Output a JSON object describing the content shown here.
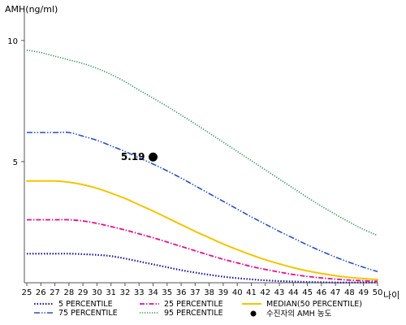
{
  "chart_data": {
    "type": "line",
    "ylabel": "AMH(ng/ml)",
    "xlabel": "나이",
    "xlim": [
      25,
      50
    ],
    "ylim": [
      0,
      11
    ],
    "yticks": [
      5,
      10
    ],
    "x": [
      25,
      26,
      27,
      28,
      29,
      30,
      31,
      32,
      33,
      34,
      35,
      36,
      37,
      38,
      39,
      40,
      41,
      42,
      43,
      44,
      45,
      46,
      47,
      48,
      49,
      50
    ],
    "series": [
      {
        "name": "5 PERCENTILE",
        "color": "#1a1a99",
        "dash": "dotted",
        "values": [
          1.2,
          1.2,
          1.2,
          1.2,
          1.18,
          1.15,
          1.1,
          1.0,
          0.88,
          0.76,
          0.64,
          0.52,
          0.42,
          0.33,
          0.25,
          0.19,
          0.14,
          0.1,
          0.07,
          0.05,
          0.03,
          0.02,
          0.01,
          0.01,
          0.01,
          0.01
        ]
      },
      {
        "name": "25 PERCENTILE",
        "color": "#e0108f",
        "dash": "dashdot",
        "values": [
          2.6,
          2.6,
          2.6,
          2.6,
          2.55,
          2.45,
          2.32,
          2.18,
          2.02,
          1.86,
          1.68,
          1.5,
          1.32,
          1.14,
          0.97,
          0.82,
          0.67,
          0.55,
          0.44,
          0.34,
          0.26,
          0.2,
          0.15,
          0.11,
          0.08,
          0.06
        ]
      },
      {
        "name": "MEDIAN(50 PERCENTILE)",
        "color": "#f2c500",
        "dash": "solid",
        "values": [
          4.2,
          4.2,
          4.2,
          4.15,
          4.05,
          3.9,
          3.7,
          3.48,
          3.22,
          2.96,
          2.68,
          2.4,
          2.12,
          1.86,
          1.6,
          1.37,
          1.15,
          0.95,
          0.78,
          0.62,
          0.49,
          0.38,
          0.29,
          0.22,
          0.17,
          0.13
        ]
      },
      {
        "name": "75 PERCENTILE",
        "color": "#2b4fbf",
        "dash": "dashdotdot",
        "values": [
          6.2,
          6.2,
          6.2,
          6.2,
          6.05,
          5.88,
          5.65,
          5.42,
          5.16,
          4.9,
          4.62,
          4.32,
          4.0,
          3.68,
          3.36,
          3.04,
          2.72,
          2.42,
          2.12,
          1.84,
          1.56,
          1.3,
          1.06,
          0.84,
          0.64,
          0.46
        ]
      },
      {
        "name": "95 PERCENTILE",
        "color": "#2e8b57",
        "dash": "densedot",
        "values": [
          9.6,
          9.5,
          9.35,
          9.2,
          9.05,
          8.85,
          8.6,
          8.3,
          7.95,
          7.62,
          7.28,
          6.92,
          6.56,
          6.18,
          5.8,
          5.42,
          5.04,
          4.66,
          4.28,
          3.9,
          3.52,
          3.16,
          2.82,
          2.5,
          2.2,
          1.95
        ]
      }
    ],
    "marker": {
      "name": "수진자의 AMH 농도",
      "x": 34,
      "y": 5.19,
      "label": "5.19"
    },
    "legend_position": "bottom",
    "grid": false
  }
}
